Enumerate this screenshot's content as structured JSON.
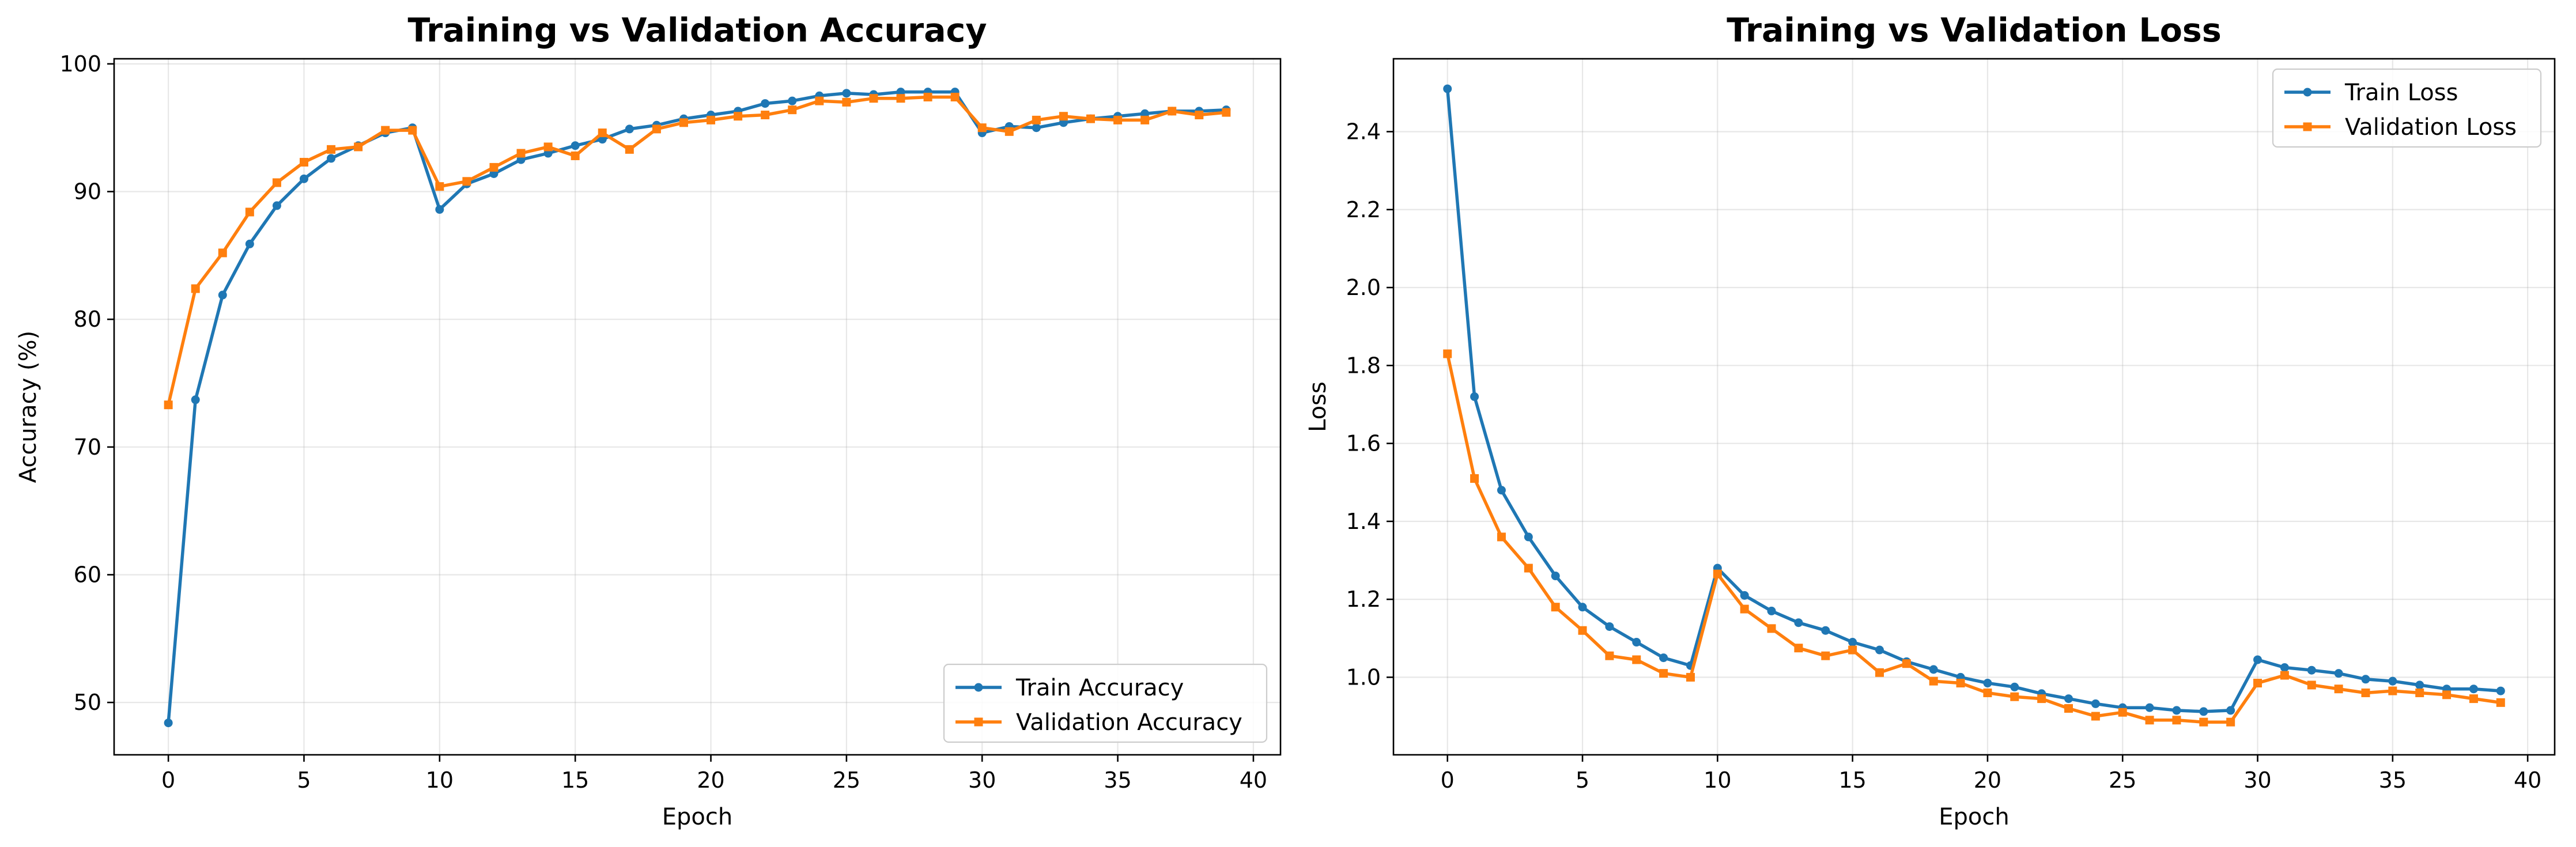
{
  "chart_data": [
    {
      "type": "line",
      "title": "Training vs Validation Accuracy",
      "xlabel": "Epoch",
      "ylabel": "Accuracy (%)",
      "xlim": [
        -2,
        41
      ],
      "ylim": [
        45.9,
        100.4
      ],
      "xticks": [
        0,
        5,
        10,
        15,
        20,
        25,
        30,
        35,
        40
      ],
      "yticks": [
        50,
        60,
        70,
        80,
        90,
        100
      ],
      "grid": true,
      "legend_position": "lower-right",
      "x": [
        0,
        1,
        2,
        3,
        4,
        5,
        6,
        7,
        8,
        9,
        10,
        11,
        12,
        13,
        14,
        15,
        16,
        17,
        18,
        19,
        20,
        21,
        22,
        23,
        24,
        25,
        26,
        27,
        28,
        29,
        30,
        31,
        32,
        33,
        34,
        35,
        36,
        37,
        38,
        39
      ],
      "series": [
        {
          "name": "Train Accuracy",
          "color": "#1f77b4",
          "marker": "circle",
          "values": [
            48.4,
            73.7,
            81.9,
            85.9,
            88.9,
            91.0,
            92.6,
            93.6,
            94.6,
            95.0,
            88.6,
            90.6,
            91.4,
            92.5,
            93.0,
            93.6,
            94.1,
            94.9,
            95.2,
            95.7,
            96.0,
            96.3,
            96.9,
            97.1,
            97.5,
            97.7,
            97.6,
            97.8,
            97.8,
            97.8,
            94.6,
            95.1,
            95.0,
            95.4,
            95.7,
            95.9,
            96.1,
            96.3,
            96.3,
            96.4
          ]
        },
        {
          "name": "Validation Accuracy",
          "color": "#ff7f0e",
          "marker": "square",
          "values": [
            73.3,
            82.4,
            85.2,
            88.4,
            90.7,
            92.3,
            93.3,
            93.5,
            94.8,
            94.8,
            90.4,
            90.8,
            91.9,
            93.0,
            93.5,
            92.8,
            94.6,
            93.3,
            94.9,
            95.4,
            95.6,
            95.9,
            96.0,
            96.4,
            97.1,
            97.0,
            97.3,
            97.3,
            97.4,
            97.4,
            95.0,
            94.7,
            95.6,
            95.9,
            95.7,
            95.6,
            95.6,
            96.3,
            96.0,
            96.2
          ]
        }
      ]
    },
    {
      "type": "line",
      "title": "Training vs Validation Loss",
      "xlabel": "Epoch",
      "ylabel": "Loss",
      "xlim": [
        -2,
        41
      ],
      "ylim": [
        0.801,
        2.587
      ],
      "xticks": [
        0,
        5,
        10,
        15,
        20,
        25,
        30,
        35,
        40
      ],
      "yticks": [
        1.0,
        1.2,
        1.4,
        1.6,
        1.8,
        2.0,
        2.2,
        2.4
      ],
      "grid": true,
      "legend_position": "upper-right",
      "x": [
        0,
        1,
        2,
        3,
        4,
        5,
        6,
        7,
        8,
        9,
        10,
        11,
        12,
        13,
        14,
        15,
        16,
        17,
        18,
        19,
        20,
        21,
        22,
        23,
        24,
        25,
        26,
        27,
        28,
        29,
        30,
        31,
        32,
        33,
        34,
        35,
        36,
        37,
        38,
        39
      ],
      "series": [
        {
          "name": "Train Loss",
          "color": "#1f77b4",
          "marker": "circle",
          "values": [
            2.51,
            1.72,
            1.48,
            1.36,
            1.26,
            1.18,
            1.13,
            1.09,
            1.05,
            1.03,
            1.28,
            1.21,
            1.17,
            1.14,
            1.12,
            1.09,
            1.07,
            1.04,
            1.02,
            1.0,
            0.985,
            0.975,
            0.958,
            0.945,
            0.932,
            0.922,
            0.922,
            0.915,
            0.912,
            0.915,
            1.045,
            1.025,
            1.018,
            1.01,
            0.995,
            0.99,
            0.98,
            0.97,
            0.97,
            0.965
          ]
        },
        {
          "name": "Validation Loss",
          "color": "#ff7f0e",
          "marker": "square",
          "values": [
            1.83,
            1.51,
            1.36,
            1.28,
            1.18,
            1.12,
            1.055,
            1.045,
            1.01,
            1.0,
            1.265,
            1.175,
            1.125,
            1.075,
            1.055,
            1.07,
            1.012,
            1.035,
            0.99,
            0.985,
            0.96,
            0.95,
            0.945,
            0.92,
            0.9,
            0.91,
            0.89,
            0.89,
            0.885,
            0.885,
            0.985,
            1.005,
            0.98,
            0.97,
            0.96,
            0.965,
            0.96,
            0.955,
            0.945,
            0.935
          ]
        }
      ]
    }
  ]
}
